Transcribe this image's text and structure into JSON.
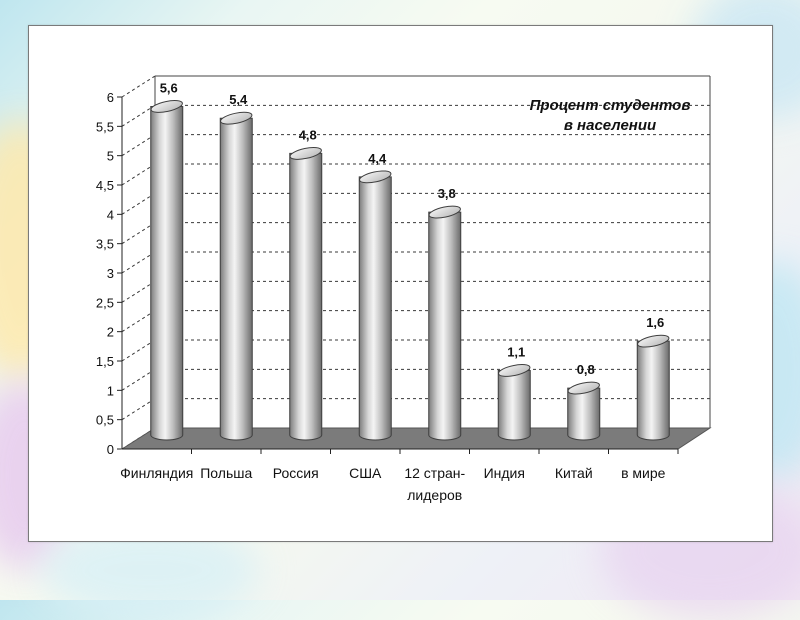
{
  "chart_data": {
    "type": "bar",
    "categories": [
      "Финляндия",
      "Польша",
      "Россия",
      "США",
      "12 стран-лидеров",
      "Индия",
      "Китай",
      "в мире"
    ],
    "category_lines": [
      [
        "Финляндия"
      ],
      [
        "Польша"
      ],
      [
        "Россия"
      ],
      [
        "США"
      ],
      [
        "12 стран-",
        "лидеров"
      ],
      [
        "Индия"
      ],
      [
        "Китай"
      ],
      [
        "в мире"
      ]
    ],
    "values": [
      5.6,
      5.4,
      4.8,
      4.4,
      3.8,
      1.1,
      0.8,
      1.6
    ],
    "data_labels": [
      "5,6",
      "5,4",
      "4,8",
      "4,4",
      "3,8",
      "1,1",
      "0,8",
      "1,6"
    ],
    "annotation": [
      "Процент студентов",
      "в населении"
    ],
    "yticks": [
      "0",
      "0,5",
      "1",
      "1,5",
      "2",
      "2,5",
      "3",
      "3,5",
      "4",
      "4,5",
      "5",
      "5,5",
      "6"
    ],
    "ylim": [
      0,
      6
    ],
    "grid": true,
    "style": "3d cylinder",
    "colors": {
      "bar_light": "#f2f2f2",
      "bar_mid": "#bdbdbd",
      "bar_dark": "#6f6f6f",
      "floor": "#7b7b7b",
      "grid": "#3a3a3a"
    }
  }
}
